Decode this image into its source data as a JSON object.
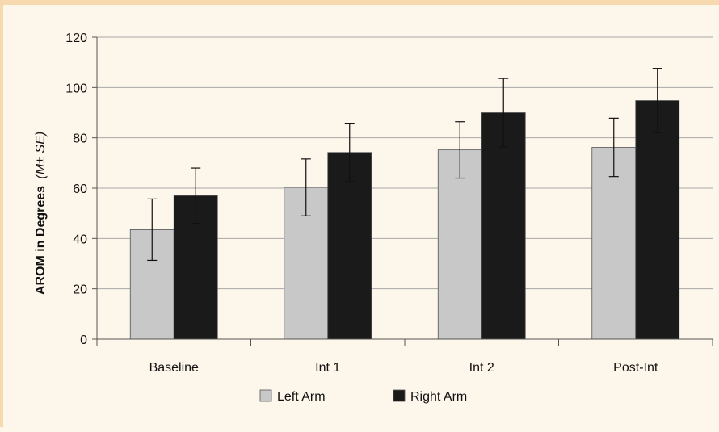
{
  "chart_data": {
    "type": "bar",
    "categories": [
      "Baseline",
      "Int 1",
      "Int 2",
      "Post-Int"
    ],
    "series": [
      {
        "name": "Left Arm",
        "color": "#c8c8c8",
        "values": [
          43.5,
          60.3,
          75.2,
          76.2
        ],
        "errors": [
          12.2,
          11.3,
          11.2,
          11.6
        ]
      },
      {
        "name": "Right Arm",
        "color": "#1a1a1a",
        "values": [
          57.0,
          74.2,
          90.0,
          94.8
        ],
        "errors": [
          11.0,
          11.6,
          13.6,
          12.8
        ]
      }
    ],
    "ylabel_main": "AROM in Degrees",
    "ylabel_suffix": "(M± SE)",
    "ylim": [
      0,
      120
    ],
    "yticks": [
      "0",
      "20",
      "40",
      "60",
      "80",
      "100",
      "120"
    ],
    "grid": true,
    "legend_position": "bottom"
  }
}
